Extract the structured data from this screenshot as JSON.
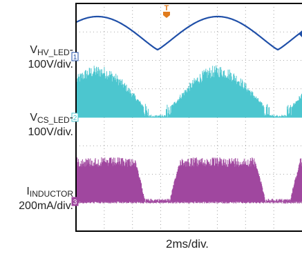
{
  "chart_data": {
    "type": "line",
    "xlabel": "2ms/div.",
    "grid": true,
    "colors": {
      "ch1": "#1f4fa8",
      "ch2": "#4cc6cf",
      "ch3": "#a0479f",
      "trigger": "#e07b1d",
      "frame": "#000000",
      "grid": "#8a8a8a"
    },
    "trigger_marker": "T",
    "channels": [
      {
        "marker": "1",
        "name_main": "V",
        "name_sub": "HV_LED",
        "scale": "100V/div.",
        "description": "rectified sine, ~2 division amplitude, period ~ 8.3 div"
      },
      {
        "marker": "2",
        "name_main": "V",
        "name_sub": "CS_LED",
        "scale": "100V/div.",
        "description": "high-frequency switching envelope following |sin|"
      },
      {
        "marker": "3",
        "name_main": "I",
        "name_sub": "INDUCTOR",
        "scale": "200mA/div.",
        "description": "switching current, flat-top bursts with gaps near valleys"
      }
    ]
  }
}
